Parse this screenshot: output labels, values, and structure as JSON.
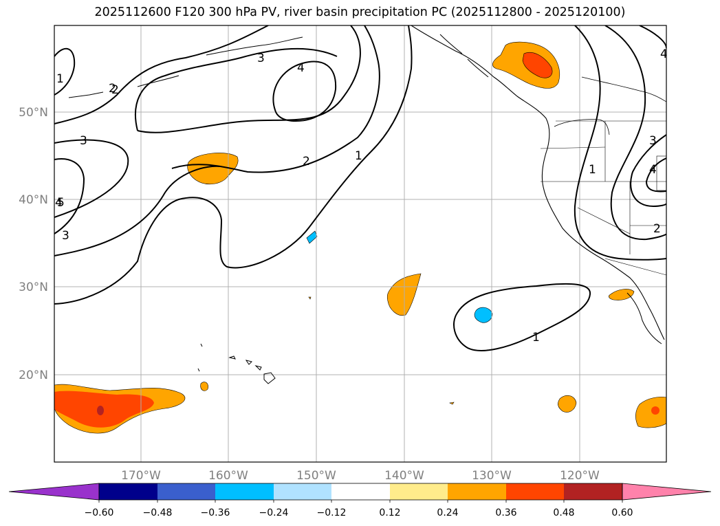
{
  "title": "2025112600 F120 300 hPa PV, river basin precipitation PC (2025112800 - 2025120100)",
  "lat_labels": [
    "50°N",
    "40°N",
    "30°N",
    "20°N"
  ],
  "lon_labels": [
    "170°W",
    "160°W",
    "150°W",
    "140°W",
    "130°W",
    "120°W"
  ],
  "pv_contour_labels": [
    "1",
    "2",
    "3",
    "4",
    "3",
    "2",
    "1",
    "3",
    "4",
    "5",
    "2",
    "3",
    "4",
    "1",
    "4",
    "1",
    "2"
  ],
  "colorbar": {
    "ticks": [
      "−0.60",
      "−0.48",
      "−0.36",
      "−0.24",
      "−0.12",
      "0.12",
      "0.24",
      "0.36",
      "0.48",
      "0.60"
    ],
    "colors": [
      "#9932cc",
      "#00008b",
      "#3a5fcd",
      "#00bfff",
      "#b0e2ff",
      "#ffffff",
      "#ffec8b",
      "#ffa500",
      "#ff4500",
      "#b22222",
      "#ff82ab"
    ]
  }
}
